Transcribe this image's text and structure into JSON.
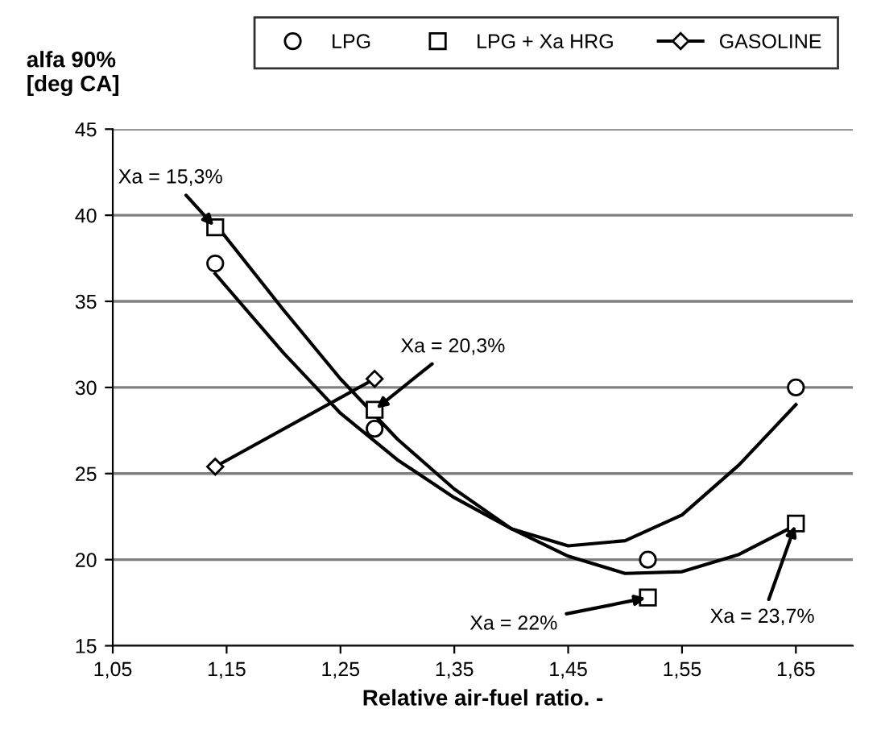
{
  "chart_data": {
    "type": "scatter",
    "xlabel": "Relative air-fuel ratio. -",
    "ylabel": "alfa 90%\n[deg CA]",
    "xlim": [
      1.05,
      1.7
    ],
    "xticks": [
      {
        "value": 1.05,
        "label": "1,05"
      },
      {
        "value": 1.15,
        "label": "1,15"
      },
      {
        "value": 1.25,
        "label": "1,25"
      },
      {
        "value": 1.35,
        "label": "1,35"
      },
      {
        "value": 1.45,
        "label": "1,45"
      },
      {
        "value": 1.55,
        "label": "1,55"
      },
      {
        "value": 1.65,
        "label": "1,65"
      }
    ],
    "ylim": [
      15,
      45
    ],
    "yticks": [
      15,
      20,
      25,
      30,
      35,
      40,
      45
    ],
    "grid": "y",
    "legend": "top",
    "series": [
      {
        "name": "LPG",
        "marker": "circle",
        "color": "#000000",
        "x": [
          1.14,
          1.28,
          1.52,
          1.65
        ],
        "values": [
          37.2,
          27.6,
          20.0,
          30.0
        ]
      },
      {
        "name": "LPG + Xa HRG",
        "marker": "square",
        "color": "#000000",
        "x": [
          1.14,
          1.28,
          1.52,
          1.65
        ],
        "values": [
          39.3,
          28.7,
          17.8,
          22.1
        ]
      },
      {
        "name": "GASOLINE",
        "type": "line",
        "marker": "diamond",
        "color": "#000000",
        "x": [
          1.14,
          1.28
        ],
        "values": [
          25.4,
          30.5
        ]
      },
      {
        "type": "line",
        "marker": "none",
        "color": "#000000",
        "x": [
          1.14,
          1.2,
          1.25,
          1.3,
          1.35,
          1.4,
          1.45,
          1.5,
          1.55,
          1.6,
          1.65
        ],
        "values": [
          36.6,
          32.0,
          28.5,
          25.8,
          23.6,
          21.8,
          20.8,
          21.1,
          22.6,
          25.5,
          29.0
        ]
      },
      {
        "type": "line",
        "marker": "none",
        "color": "#000000",
        "x": [
          1.14,
          1.2,
          1.25,
          1.3,
          1.35,
          1.4,
          1.45,
          1.5,
          1.55,
          1.6,
          1.65
        ],
        "values": [
          39.5,
          34.5,
          30.5,
          27.0,
          24.1,
          21.8,
          20.2,
          19.2,
          19.3,
          20.3,
          22.0
        ]
      }
    ],
    "annotations": [
      {
        "text": "Xa = 15,3%",
        "x": 1.14,
        "y": 39.3
      },
      {
        "text": "Xa = 20,3%",
        "x": 1.28,
        "y": 28.7
      },
      {
        "text": "Xa = 22%",
        "x": 1.52,
        "y": 17.8
      },
      {
        "text": "Xa = 23,7%",
        "x": 1.65,
        "y": 22.1
      }
    ]
  }
}
